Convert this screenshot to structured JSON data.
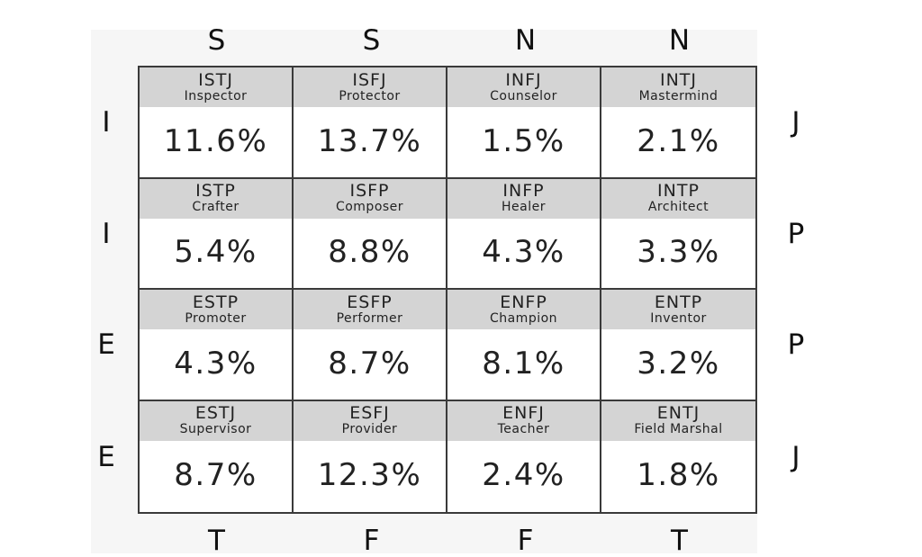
{
  "columns_top": [
    "S",
    "S",
    "N",
    "N"
  ],
  "columns_bottom": [
    "T",
    "F",
    "F",
    "T"
  ],
  "rows_left": [
    "I",
    "I",
    "E",
    "E"
  ],
  "rows_right": [
    "J",
    "P",
    "P",
    "J"
  ],
  "chart_data": {
    "type": "table",
    "columns": [
      "S",
      "S",
      "N",
      "N"
    ],
    "rows": [
      {
        "left": "I",
        "right": "J",
        "cells": [
          {
            "type": "ISTJ",
            "role": "Inspector",
            "percent": "11.6%"
          },
          {
            "type": "ISFJ",
            "role": "Protector",
            "percent": "13.7%"
          },
          {
            "type": "INFJ",
            "role": "Counselor",
            "percent": "1.5%"
          },
          {
            "type": "INTJ",
            "role": "Mastermind",
            "percent": "2.1%"
          }
        ]
      },
      {
        "left": "I",
        "right": "P",
        "cells": [
          {
            "type": "ISTP",
            "role": "Crafter",
            "percent": "5.4%"
          },
          {
            "type": "ISFP",
            "role": "Composer",
            "percent": "8.8%"
          },
          {
            "type": "INFP",
            "role": "Healer",
            "percent": "4.3%"
          },
          {
            "type": "INTP",
            "role": "Architect",
            "percent": "3.3%"
          }
        ]
      },
      {
        "left": "E",
        "right": "P",
        "cells": [
          {
            "type": "ESTP",
            "role": "Promoter",
            "percent": "4.3%"
          },
          {
            "type": "ESFP",
            "role": "Performer",
            "percent": "8.7%"
          },
          {
            "type": "ENFP",
            "role": "Champion",
            "percent": "8.1%"
          },
          {
            "type": "ENTP",
            "role": "Inventor",
            "percent": "3.2%"
          }
        ]
      },
      {
        "left": "E",
        "right": "J",
        "cells": [
          {
            "type": "ESTJ",
            "role": "Supervisor",
            "percent": "8.7%"
          },
          {
            "type": "ESFJ",
            "role": "Provider",
            "percent": "12.3%"
          },
          {
            "type": "ENFJ",
            "role": "Teacher",
            "percent": "2.4%"
          },
          {
            "type": "ENTJ",
            "role": "Field Marshal",
            "percent": "1.8%"
          }
        ]
      }
    ],
    "bottom_labels": [
      "T",
      "F",
      "F",
      "T"
    ]
  }
}
